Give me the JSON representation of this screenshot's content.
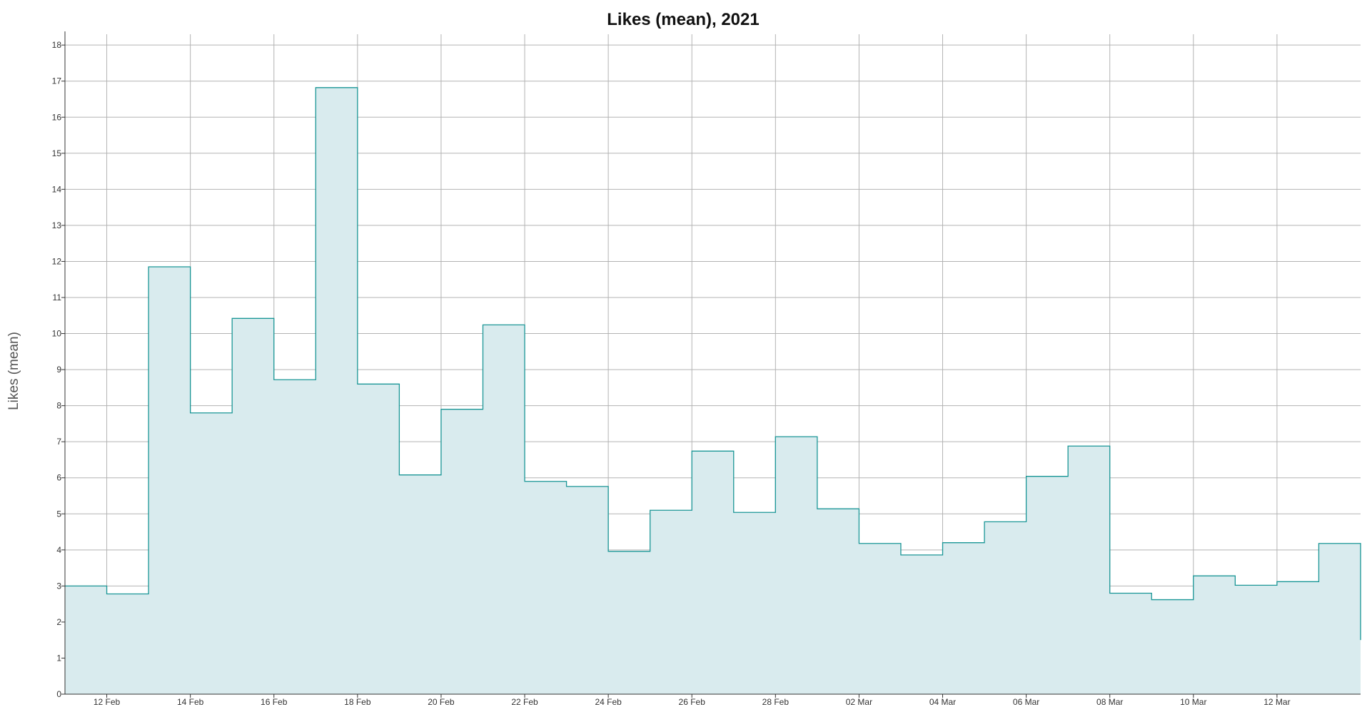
{
  "chart_data": {
    "type": "area",
    "title": "Likes (mean), 2021",
    "xlabel": "",
    "ylabel": "Likes (mean)",
    "x_start": "2021-02-11",
    "x_end": "2021-03-14",
    "ylim": [
      0,
      18.3
    ],
    "y_ticks": [
      "0",
      "1",
      "2",
      "3",
      "4",
      "5",
      "6",
      "7",
      "8",
      "9",
      "10",
      "11",
      "12",
      "13",
      "14",
      "15",
      "16",
      "17",
      "18"
    ],
    "x_ticks": [
      {
        "date": "2021-02-12",
        "label": "12 Feb"
      },
      {
        "date": "2021-02-14",
        "label": "14 Feb"
      },
      {
        "date": "2021-02-16",
        "label": "16 Feb"
      },
      {
        "date": "2021-02-18",
        "label": "18 Feb"
      },
      {
        "date": "2021-02-20",
        "label": "20 Feb"
      },
      {
        "date": "2021-02-22",
        "label": "22 Feb"
      },
      {
        "date": "2021-02-24",
        "label": "24 Feb"
      },
      {
        "date": "2021-02-26",
        "label": "26 Feb"
      },
      {
        "date": "2021-02-28",
        "label": "28 Feb"
      },
      {
        "date": "2021-03-02",
        "label": "02 Mar"
      },
      {
        "date": "2021-03-04",
        "label": "04 Mar"
      },
      {
        "date": "2021-03-06",
        "label": "06 Mar"
      },
      {
        "date": "2021-03-08",
        "label": "08 Mar"
      },
      {
        "date": "2021-03-10",
        "label": "10 Mar"
      },
      {
        "date": "2021-03-12",
        "label": "12 Mar"
      }
    ],
    "grid": true,
    "step": "post",
    "series": [
      {
        "line_color": "#1a9696",
        "fill_color": "#d9ebee",
        "points": [
          {
            "x": "2021-02-11",
            "y": 3.0
          },
          {
            "x": "2021-02-12",
            "y": 2.78
          },
          {
            "x": "2021-02-13",
            "y": 11.85
          },
          {
            "x": "2021-02-14",
            "y": 7.8
          },
          {
            "x": "2021-02-15",
            "y": 10.42
          },
          {
            "x": "2021-02-16",
            "y": 8.72
          },
          {
            "x": "2021-02-17",
            "y": 16.82
          },
          {
            "x": "2021-02-18",
            "y": 8.6
          },
          {
            "x": "2021-02-19",
            "y": 6.08
          },
          {
            "x": "2021-02-20",
            "y": 7.9
          },
          {
            "x": "2021-02-21",
            "y": 10.24
          },
          {
            "x": "2021-02-22",
            "y": 5.9
          },
          {
            "x": "2021-02-23",
            "y": 5.76
          },
          {
            "x": "2021-02-24",
            "y": 3.96
          },
          {
            "x": "2021-02-25",
            "y": 5.1
          },
          {
            "x": "2021-02-26",
            "y": 6.74
          },
          {
            "x": "2021-02-27",
            "y": 5.04
          },
          {
            "x": "2021-02-28",
            "y": 7.14
          },
          {
            "x": "2021-03-01",
            "y": 5.14
          },
          {
            "x": "2021-03-02",
            "y": 4.18
          },
          {
            "x": "2021-03-03",
            "y": 3.86
          },
          {
            "x": "2021-03-04",
            "y": 4.2
          },
          {
            "x": "2021-03-05",
            "y": 4.78
          },
          {
            "x": "2021-03-06",
            "y": 6.04
          },
          {
            "x": "2021-03-07",
            "y": 6.88
          },
          {
            "x": "2021-03-08",
            "y": 2.8
          },
          {
            "x": "2021-03-09",
            "y": 2.62
          },
          {
            "x": "2021-03-10",
            "y": 3.28
          },
          {
            "x": "2021-03-11",
            "y": 3.02
          },
          {
            "x": "2021-03-12",
            "y": 3.12
          },
          {
            "x": "2021-03-13",
            "y": 4.18
          },
          {
            "x": "2021-03-14",
            "y": 1.5
          }
        ]
      }
    ]
  }
}
